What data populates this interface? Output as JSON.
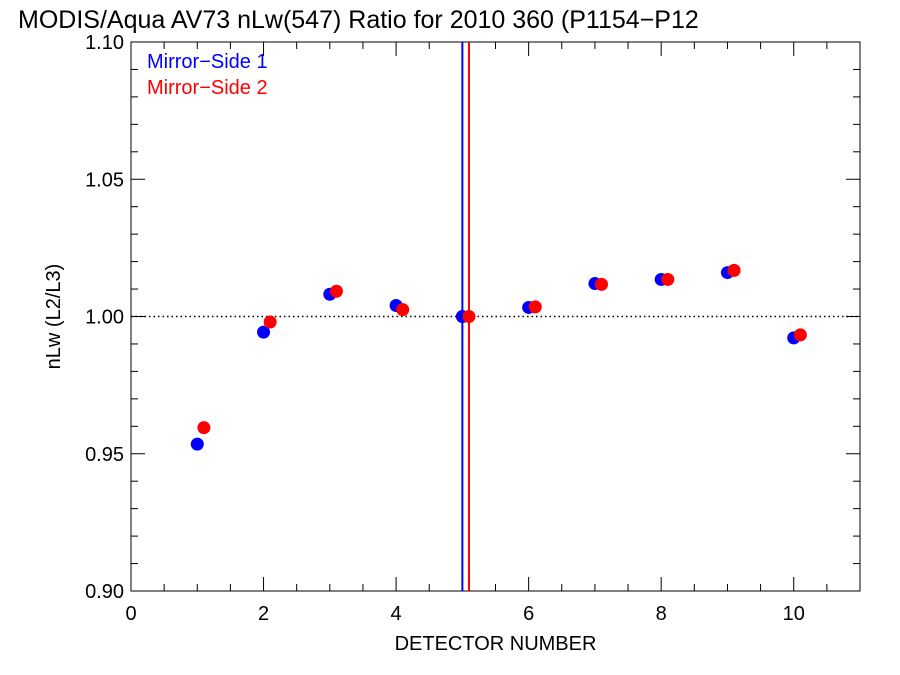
{
  "chart_data": {
    "type": "scatter",
    "title": "MODIS/Aqua AV73 nLw(547) Ratio for 2010 360 (P1154−P12",
    "xlabel": "DETECTOR NUMBER",
    "ylabel": "nLw (L2/L3)",
    "xlim": [
      0,
      11
    ],
    "ylim": [
      0.9,
      1.1
    ],
    "x_ticks": [
      0,
      2,
      4,
      6,
      8,
      10
    ],
    "x_tick_labels": [
      "0",
      "2",
      "4",
      "6",
      "8",
      "10"
    ],
    "y_ticks": [
      0.9,
      0.95,
      1.0,
      1.05,
      1.1
    ],
    "y_tick_labels": [
      "0.90",
      "0.95",
      "1.00",
      "1.05",
      "1.10"
    ],
    "x_minor_step": 0.5,
    "y_minor_step": 0.01,
    "reference_line": {
      "y": 1.0,
      "style": "dotted",
      "color": "#000000"
    },
    "vertical_lines": [
      {
        "x": 5.0,
        "color": "#0000ff"
      },
      {
        "x": 5.1,
        "color": "#ff0000"
      }
    ],
    "legend": "top-left",
    "grid": false,
    "series": [
      {
        "name": "Mirror−Side 1",
        "color": "#0000ff",
        "x": [
          1,
          2,
          3,
          4,
          5,
          6,
          7,
          8,
          9,
          10
        ],
        "y": [
          0.9535,
          0.9943,
          1.0081,
          1.004,
          1.0,
          1.0033,
          1.012,
          1.0135,
          1.016,
          0.9922
        ]
      },
      {
        "name": "Mirror−Side 2",
        "color": "#ff0000",
        "x": [
          1.1,
          2.1,
          3.1,
          4.1,
          5.1,
          6.1,
          7.1,
          8.1,
          9.1,
          10.1
        ],
        "y": [
          0.9595,
          0.998,
          1.0092,
          1.0025,
          1.0,
          1.0035,
          1.0117,
          1.0135,
          1.0168,
          0.9933
        ]
      }
    ]
  }
}
